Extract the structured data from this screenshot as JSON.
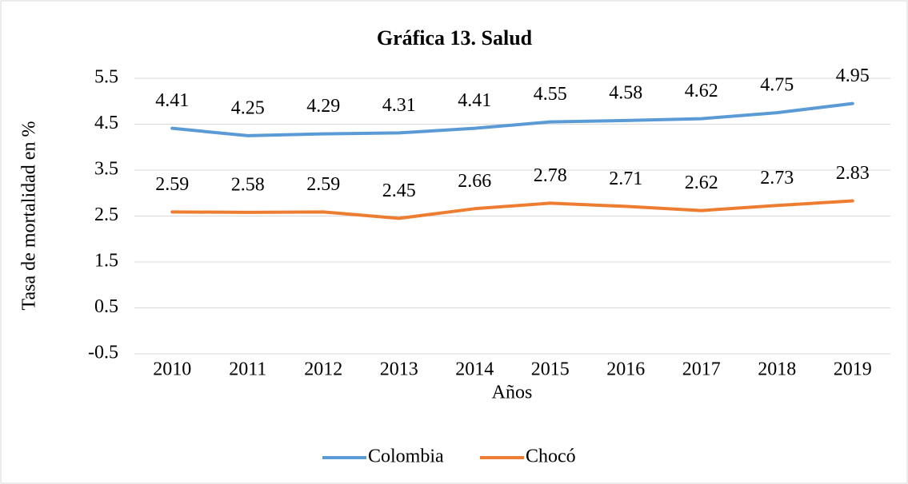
{
  "chart_data": {
    "type": "line",
    "title": "Gráfica 13. Salud",
    "y_label": "Tasa de mortalidad en %",
    "x_label": "Años",
    "categories": [
      "2010",
      "2011",
      "2012",
      "2013",
      "2014",
      "2015",
      "2016",
      "2017",
      "2018",
      "2019"
    ],
    "series": [
      {
        "name": "Colombia",
        "color": "#5b9bd5",
        "values": [
          4.41,
          4.25,
          4.29,
          4.31,
          4.41,
          4.55,
          4.58,
          4.62,
          4.75,
          4.95
        ]
      },
      {
        "name": "Chocó",
        "color": "#ed7d31",
        "values": [
          2.59,
          2.58,
          2.59,
          2.45,
          2.66,
          2.78,
          2.71,
          2.62,
          2.73,
          2.83
        ]
      }
    ],
    "ylim": [
      -0.5,
      5.5
    ],
    "yticks": [
      -0.5,
      0.5,
      1.5,
      2.5,
      3.5,
      4.5,
      5.5
    ],
    "grid": true,
    "legend": "bottom"
  }
}
